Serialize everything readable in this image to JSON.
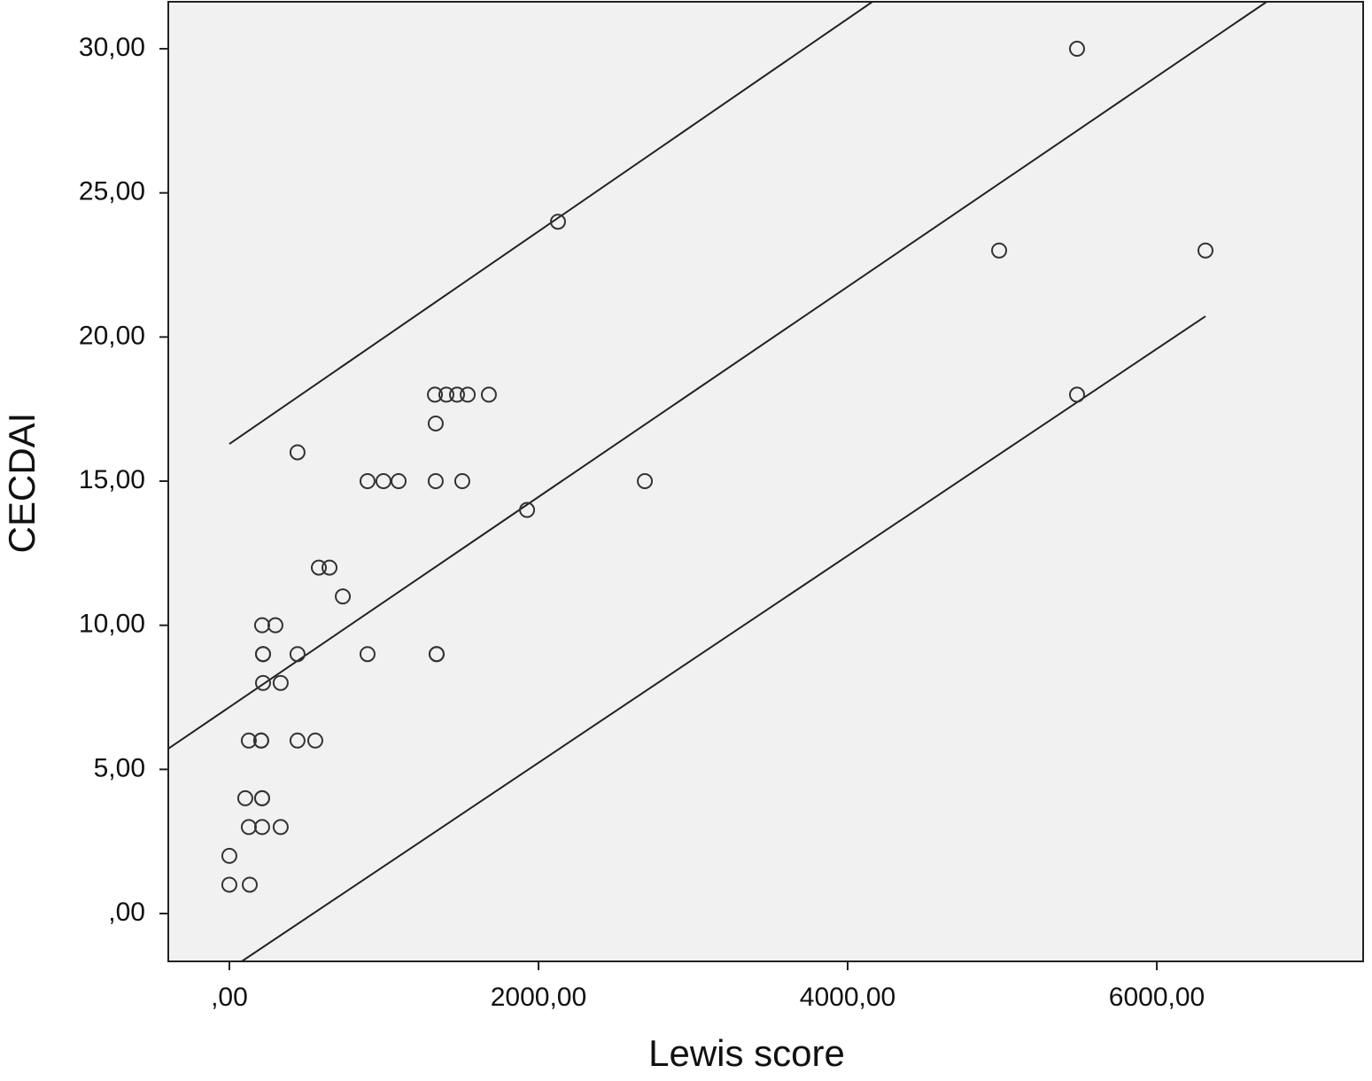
{
  "chart_data": {
    "type": "scatter",
    "x_label": "Lewis score",
    "y_label": "CECDAI",
    "x": [
      0,
      0,
      132,
      103,
      212,
      212,
      126,
      212,
      332,
      126,
      206,
      206,
      441,
      556,
      218,
      332,
      218,
      218,
      441,
      894,
      1341,
      1341,
      212,
      298,
      734,
      579,
      648,
      441,
      894,
      997,
      1095,
      1335,
      1507,
      2688,
      1926,
      1335,
      1330,
      1404,
      1473,
      1542,
      1679,
      2126,
      4980,
      6315,
      5484,
      5484
    ],
    "values": [
      2,
      1,
      1,
      4,
      4,
      4,
      3,
      3,
      3,
      6,
      6,
      6,
      6,
      6,
      8,
      8,
      9,
      9,
      9,
      9,
      9,
      9,
      10,
      10,
      11,
      12,
      12,
      16,
      15,
      15,
      15,
      15,
      15,
      15,
      14,
      17,
      18,
      18,
      18,
      18,
      18,
      24,
      23,
      23,
      30,
      18
    ],
    "color": "#333333",
    "fit_lines": [
      {
        "x": [
          -395,
          6711
        ],
        "y": [
          5.72,
          31.63
        ]
      },
      {
        "x": [
          0,
          4160
        ],
        "y": [
          16.29,
          31.63
        ]
      },
      {
        "x": [
          80,
          6315
        ],
        "y": [
          -1.66,
          20.72
        ]
      }
    ],
    "xlim": [
      -395,
      7335
    ],
    "ylim": [
      -1.66,
      31.63
    ],
    "xticks": [
      {
        "value": 0,
        "label": ",00"
      },
      {
        "value": 2000,
        "label": "2000,00"
      },
      {
        "value": 4000,
        "label": "4000,00"
      },
      {
        "value": 6000,
        "label": "6000,00"
      }
    ],
    "yticks": [
      {
        "value": 0,
        "label": ",00"
      },
      {
        "value": 5,
        "label": "5,00"
      },
      {
        "value": 10,
        "label": "10,00"
      },
      {
        "value": 15,
        "label": "15,00"
      },
      {
        "value": 20,
        "label": "20,00"
      },
      {
        "value": 25,
        "label": "25,00"
      },
      {
        "value": 30,
        "label": "30,00"
      }
    ],
    "background": "#f0f1f0"
  }
}
